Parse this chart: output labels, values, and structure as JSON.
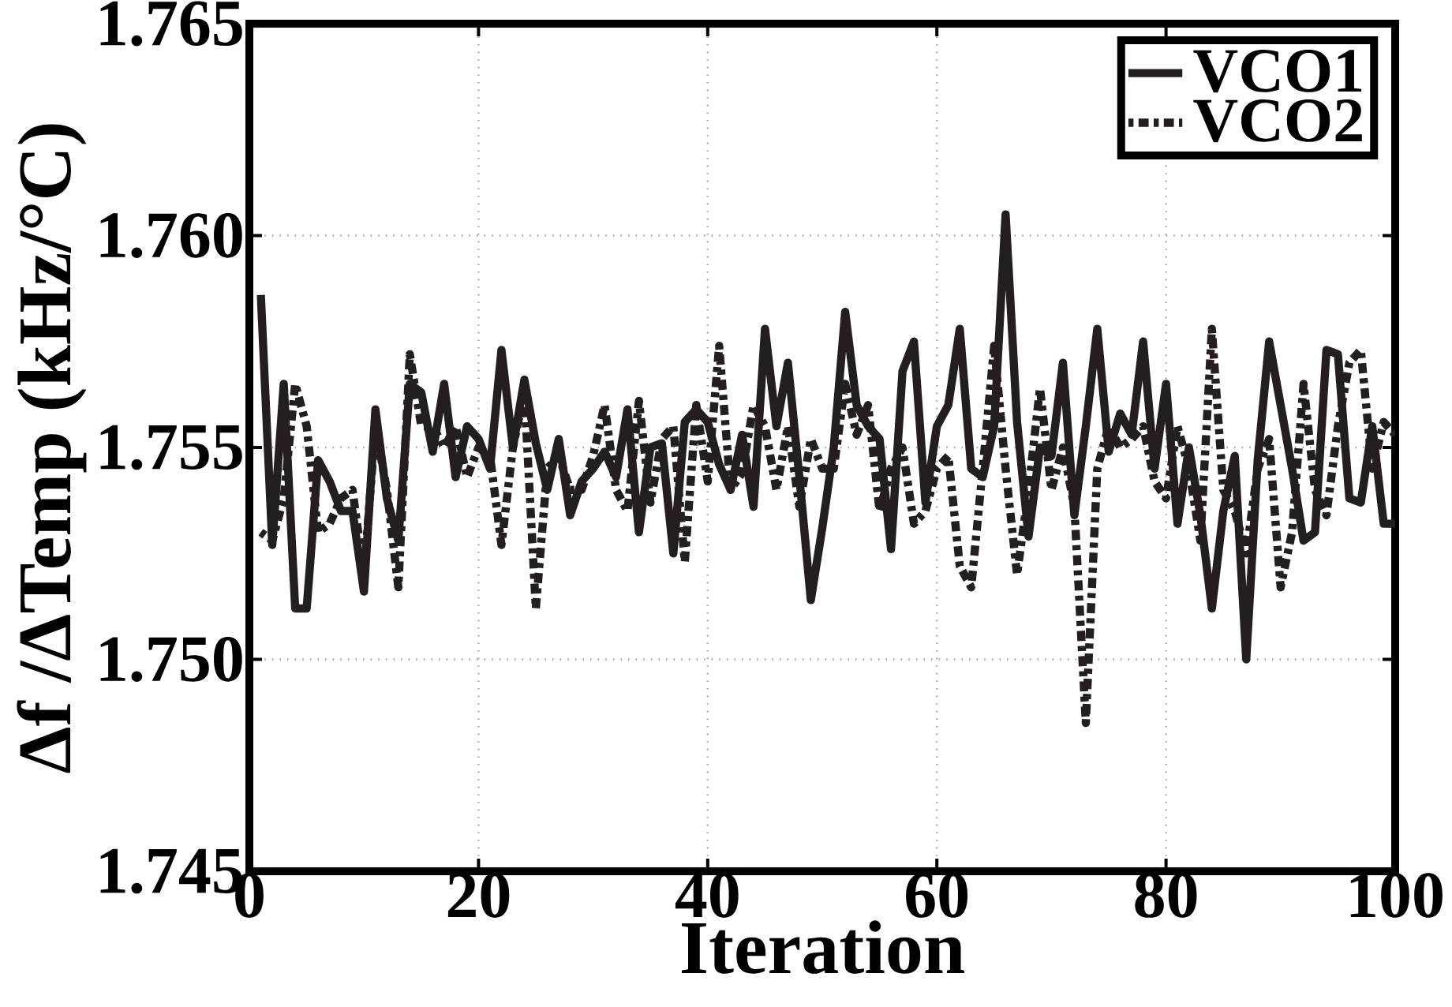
{
  "chart_data": {
    "type": "line",
    "xlabel": "Iteration",
    "ylabel": "Δf /ΔTemp (kHz/°C)",
    "x": [
      1,
      2,
      3,
      4,
      5,
      6,
      7,
      8,
      9,
      10,
      11,
      12,
      13,
      14,
      15,
      16,
      17,
      18,
      19,
      20,
      21,
      22,
      23,
      24,
      25,
      26,
      27,
      28,
      29,
      30,
      31,
      32,
      33,
      34,
      35,
      36,
      37,
      38,
      39,
      40,
      41,
      42,
      43,
      44,
      45,
      46,
      47,
      48,
      49,
      50,
      51,
      52,
      53,
      54,
      55,
      56,
      57,
      58,
      59,
      60,
      61,
      62,
      63,
      64,
      65,
      66,
      67,
      68,
      69,
      70,
      71,
      72,
      73,
      74,
      75,
      76,
      77,
      78,
      79,
      80,
      81,
      82,
      83,
      84,
      85,
      86,
      87,
      88,
      89,
      90,
      91,
      92,
      93,
      94,
      95,
      96,
      97,
      98,
      99,
      100
    ],
    "series": [
      {
        "name": "VCO1",
        "color": "#231f20",
        "line_style": "solid",
        "values": [
          1.7586,
          1.7527,
          1.7565,
          1.7512,
          1.7512,
          1.7547,
          1.7542,
          1.7535,
          1.7535,
          1.7516,
          1.7559,
          1.7538,
          1.7528,
          1.7565,
          1.7563,
          1.7549,
          1.7565,
          1.7543,
          1.7555,
          1.7552,
          1.7545,
          1.7573,
          1.755,
          1.7566,
          1.7551,
          1.754,
          1.7552,
          1.7534,
          1.7542,
          1.7545,
          1.7549,
          1.7543,
          1.7559,
          1.753,
          1.755,
          1.7551,
          1.7525,
          1.7556,
          1.7559,
          1.7556,
          1.7546,
          1.754,
          1.7553,
          1.7536,
          1.7578,
          1.7555,
          1.757,
          1.7543,
          1.7514,
          1.7531,
          1.755,
          1.7582,
          1.756,
          1.7555,
          1.7552,
          1.7526,
          1.7568,
          1.7575,
          1.7537,
          1.7555,
          1.756,
          1.7578,
          1.7545,
          1.7543,
          1.7555,
          1.7605,
          1.7556,
          1.7529,
          1.755,
          1.7548,
          1.757,
          1.7534,
          1.7555,
          1.7578,
          1.7549,
          1.7558,
          1.7553,
          1.7575,
          1.7545,
          1.7565,
          1.7532,
          1.755,
          1.7534,
          1.7512,
          1.7535,
          1.7548,
          1.75,
          1.7547,
          1.7575,
          1.756,
          1.7545,
          1.7528,
          1.753,
          1.7573,
          1.7572,
          1.7538,
          1.7537,
          1.7555,
          1.7532,
          1.7532
        ]
      },
      {
        "name": "VCO2",
        "color": "#231f20",
        "line_style": "dotted",
        "values": [
          1.753,
          1.7528,
          1.7538,
          1.7565,
          1.7555,
          1.753,
          1.7532,
          1.7538,
          1.754,
          1.752,
          1.7555,
          1.754,
          1.7517,
          1.7572,
          1.7555,
          1.7555,
          1.755,
          1.7555,
          1.7543,
          1.755,
          1.7548,
          1.7527,
          1.755,
          1.7563,
          1.7512,
          1.7545,
          1.7548,
          1.754,
          1.754,
          1.7548,
          1.756,
          1.754,
          1.7535,
          1.7561,
          1.7537,
          1.7552,
          1.7555,
          1.7523,
          1.756,
          1.7542,
          1.7574,
          1.754,
          1.7544,
          1.756,
          1.7555,
          1.754,
          1.7555,
          1.7536,
          1.7552,
          1.7545,
          1.7545,
          1.7565,
          1.7553,
          1.756,
          1.7535,
          1.7545,
          1.755,
          1.7532,
          1.7535,
          1.7545,
          1.7548,
          1.7522,
          1.7517,
          1.7545,
          1.7574,
          1.7545,
          1.752,
          1.754,
          1.7564,
          1.754,
          1.755,
          1.7536,
          1.7485,
          1.7545,
          1.7555,
          1.755,
          1.7552,
          1.7555,
          1.7542,
          1.7538,
          1.7555,
          1.7545,
          1.7528,
          1.7578,
          1.754,
          1.7535,
          1.7525,
          1.7545,
          1.7552,
          1.7517,
          1.753,
          1.7565,
          1.754,
          1.7534,
          1.7555,
          1.757,
          1.7573,
          1.7545,
          1.7556,
          1.7553
        ]
      }
    ],
    "xlim": [
      0,
      100
    ],
    "xticks": [
      0,
      20,
      40,
      60,
      80,
      100
    ],
    "ylim": [
      1.745,
      1.765
    ],
    "yticks": [
      1.745,
      {
        "value": 1.75,
        "label": "1.750"
      },
      1.755,
      {
        "value": 1.76,
        "label": "1.760"
      },
      1.765
    ],
    "grid": true,
    "legend": "top right",
    "marker": "none"
  }
}
